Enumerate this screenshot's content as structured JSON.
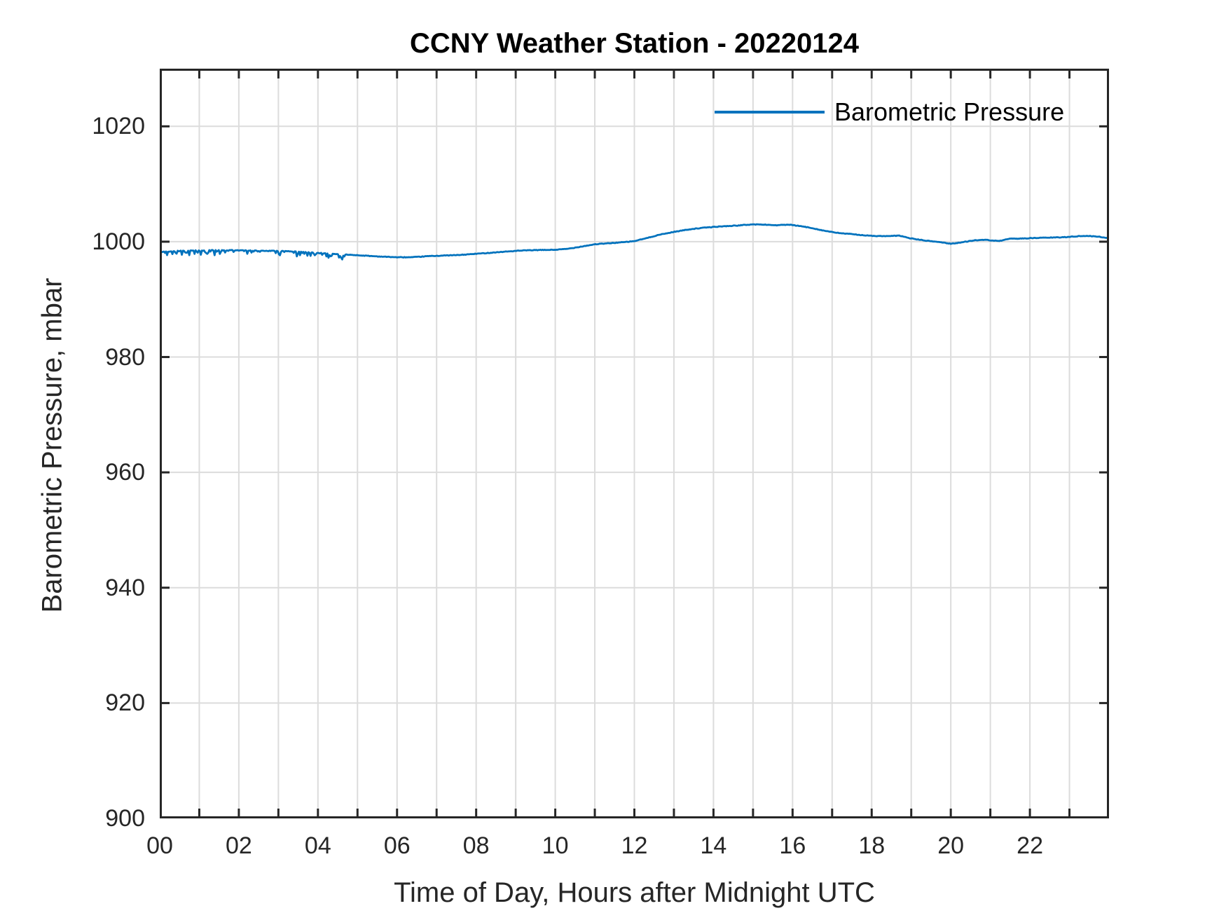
{
  "chart_data": {
    "type": "line",
    "title": "CCNY Weather Station - 20220124",
    "xlabel": "Time of Day, Hours after Midnight UTC",
    "ylabel": "Barometric Pressure, mbar",
    "xlim": [
      0,
      24
    ],
    "ylim": [
      900,
      1030
    ],
    "grid": true,
    "legend_position": "top-right-inside",
    "legend_box": false,
    "x_tick_minor_step": 1,
    "x_tick_labeled_values": [
      0,
      2,
      4,
      6,
      8,
      10,
      12,
      14,
      16,
      18,
      20,
      22
    ],
    "x_tick_labels": [
      "00",
      "02",
      "04",
      "06",
      "08",
      "10",
      "12",
      "14",
      "16",
      "18",
      "20",
      "22"
    ],
    "y_tick_values": [
      900,
      920,
      940,
      960,
      980,
      1000,
      1020
    ],
    "y_tick_labels": [
      "900",
      "920",
      "940",
      "960",
      "980",
      "1000",
      "1020"
    ],
    "colors": {
      "line": "#0072BD",
      "axis": "#262626",
      "grid": "#dcdcdc",
      "background": "#ffffff"
    },
    "series": [
      {
        "name": "Barometric Pressure",
        "color": "#0072BD",
        "x": [
          0.0,
          0.3,
          0.6,
          1.0,
          1.5,
          2.0,
          2.5,
          3.0,
          3.5,
          4.0,
          4.5,
          5.0,
          5.5,
          6.0,
          6.4,
          6.8,
          7.2,
          7.6,
          8.0,
          8.5,
          9.0,
          9.3,
          9.6,
          10.0,
          10.3,
          10.7,
          11.0,
          11.4,
          11.8,
          12.0,
          12.3,
          12.6,
          13.0,
          13.4,
          13.8,
          14.2,
          14.6,
          15.0,
          15.3,
          15.6,
          15.9,
          16.2,
          16.5,
          16.8,
          17.1,
          17.5,
          18.0,
          18.4,
          18.7,
          19.0,
          19.4,
          19.7,
          20.0,
          20.3,
          20.6,
          20.9,
          21.2,
          21.5,
          22.0,
          22.4,
          22.8,
          23.1,
          23.4,
          23.7,
          24.0
        ],
        "y": [
          998.2,
          998.35,
          998.45,
          998.5,
          998.55,
          998.5,
          998.45,
          998.4,
          998.25,
          998.05,
          997.85,
          997.65,
          997.45,
          997.3,
          997.3,
          997.5,
          997.6,
          997.7,
          997.9,
          998.15,
          998.4,
          998.5,
          998.55,
          998.6,
          998.75,
          999.2,
          999.55,
          999.75,
          999.95,
          1000.1,
          1000.6,
          1001.15,
          1001.7,
          1002.15,
          1002.45,
          1002.65,
          1002.8,
          1003.0,
          1002.95,
          1002.85,
          1002.95,
          1002.7,
          1002.35,
          1001.9,
          1001.55,
          1001.3,
          1001.0,
          1000.95,
          1001.05,
          1000.55,
          1000.15,
          999.95,
          999.65,
          999.9,
          1000.25,
          1000.3,
          1000.1,
          1000.5,
          1000.6,
          1000.7,
          1000.75,
          1000.9,
          1001.0,
          1000.9,
          1000.6
        ]
      }
    ],
    "noise": {
      "t_start": 0.0,
      "t_end": 4.7,
      "amplitude": 0.85
    }
  }
}
